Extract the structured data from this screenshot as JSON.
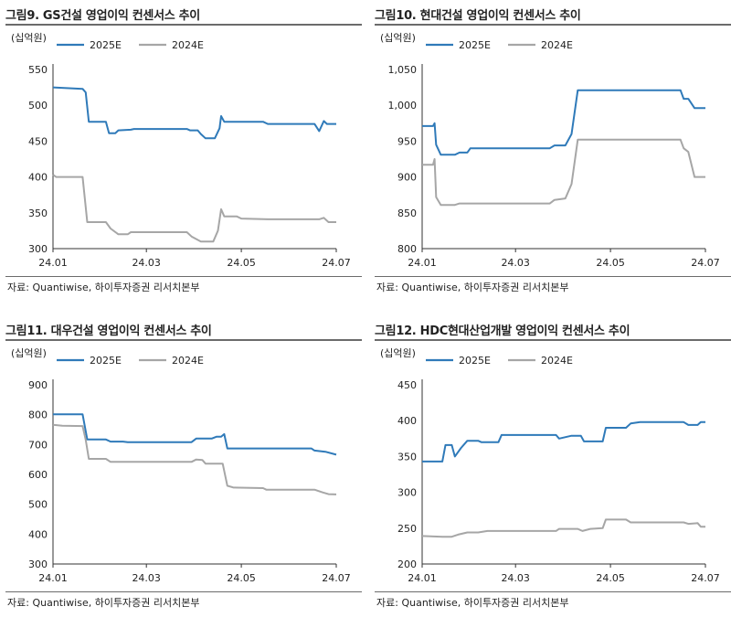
{
  "source": "자료: Quantiwise, 하이투자증권 리서치본부",
  "colors": {
    "series_2025E": "#2f7ab9",
    "series_2024E": "#a6a6a6",
    "rule": "#6b6b6b"
  },
  "chart_data": [
    {
      "type": "line",
      "title": "그림9.  GS건설 영업이익 컨센서스 추이",
      "unit": "(십억원)",
      "ylim": [
        300,
        550
      ],
      "yticks": [
        300,
        350,
        400,
        450,
        500,
        550
      ],
      "xlim": [
        "2024-01-01",
        "2024-07-01"
      ],
      "xticks": [
        "24.01",
        "24.03",
        "24.05",
        "24.07"
      ],
      "legend": "top",
      "series": [
        {
          "name": "2025E",
          "color": "#2f7ab9",
          "points": [
            [
              "2024-01-01",
              525
            ],
            [
              "2024-01-20",
              523
            ],
            [
              "2024-01-22",
              518
            ],
            [
              "2024-01-24",
              477
            ],
            [
              "2024-02-04",
              477
            ],
            [
              "2024-02-06",
              461
            ],
            [
              "2024-02-10",
              461
            ],
            [
              "2024-02-12",
              465
            ],
            [
              "2024-02-20",
              466
            ],
            [
              "2024-02-22",
              467
            ],
            [
              "2024-03-27",
              467
            ],
            [
              "2024-03-29",
              465
            ],
            [
              "2024-04-03",
              465
            ],
            [
              "2024-04-05",
              460
            ],
            [
              "2024-04-08",
              454
            ],
            [
              "2024-04-14",
              454
            ],
            [
              "2024-04-17",
              468
            ],
            [
              "2024-04-18",
              485
            ],
            [
              "2024-04-20",
              477
            ],
            [
              "2024-05-15",
              477
            ],
            [
              "2024-05-18",
              474
            ],
            [
              "2024-06-17",
              474
            ],
            [
              "2024-06-20",
              464
            ],
            [
              "2024-06-23",
              478
            ],
            [
              "2024-06-25",
              474
            ],
            [
              "2024-07-01",
              474
            ]
          ]
        },
        {
          "name": "2024E",
          "color": "#a6a6a6",
          "points": [
            [
              "2024-01-01",
              403
            ],
            [
              "2024-01-03",
              400
            ],
            [
              "2024-01-20",
              400
            ],
            [
              "2024-01-23",
              337
            ],
            [
              "2024-02-04",
              337
            ],
            [
              "2024-02-07",
              328
            ],
            [
              "2024-02-12",
              320
            ],
            [
              "2024-02-18",
              320
            ],
            [
              "2024-02-20",
              323
            ],
            [
              "2024-03-27",
              323
            ],
            [
              "2024-03-30",
              317
            ],
            [
              "2024-04-05",
              310
            ],
            [
              "2024-04-13",
              310
            ],
            [
              "2024-04-16",
              325
            ],
            [
              "2024-04-18",
              355
            ],
            [
              "2024-04-20",
              345
            ],
            [
              "2024-04-28",
              345
            ],
            [
              "2024-05-01",
              342
            ],
            [
              "2024-05-18",
              341
            ],
            [
              "2024-06-20",
              341
            ],
            [
              "2024-06-23",
              343
            ],
            [
              "2024-06-26",
              337
            ],
            [
              "2024-07-01",
              337
            ]
          ]
        }
      ]
    },
    {
      "type": "line",
      "title": "그림10. 현대건설 영업이익 컨센서스 추이",
      "unit": "(십억원)",
      "ylim": [
        800,
        1050
      ],
      "yticks": [
        800,
        850,
        900,
        950,
        1000,
        1050
      ],
      "ytick_labels": [
        "800",
        "850",
        "900",
        "950",
        "1,000",
        "1,050"
      ],
      "xlim": [
        "2024-01-01",
        "2024-07-01"
      ],
      "xticks": [
        "24.01",
        "24.03",
        "24.05",
        "24.07"
      ],
      "legend": "top",
      "series": [
        {
          "name": "2025E",
          "color": "#2f7ab9",
          "points": [
            [
              "2024-01-01",
              971
            ],
            [
              "2024-01-08",
              971
            ],
            [
              "2024-01-09",
              975
            ],
            [
              "2024-01-10",
              945
            ],
            [
              "2024-01-13",
              931
            ],
            [
              "2024-01-22",
              931
            ],
            [
              "2024-01-25",
              934
            ],
            [
              "2024-01-30",
              934
            ],
            [
              "2024-02-01",
              940
            ],
            [
              "2024-03-23",
              940
            ],
            [
              "2024-03-26",
              944
            ],
            [
              "2024-04-02",
              944
            ],
            [
              "2024-04-06",
              960
            ],
            [
              "2024-04-10",
              1021
            ],
            [
              "2024-06-15",
              1021
            ],
            [
              "2024-06-17",
              1009
            ],
            [
              "2024-06-20",
              1009
            ],
            [
              "2024-06-24",
              996
            ],
            [
              "2024-07-01",
              996
            ]
          ]
        },
        {
          "name": "2024E",
          "color": "#a6a6a6",
          "points": [
            [
              "2024-01-01",
              917
            ],
            [
              "2024-01-08",
              917
            ],
            [
              "2024-01-09",
              925
            ],
            [
              "2024-01-10",
              872
            ],
            [
              "2024-01-13",
              861
            ],
            [
              "2024-01-22",
              861
            ],
            [
              "2024-01-25",
              863
            ],
            [
              "2024-03-23",
              863
            ],
            [
              "2024-03-26",
              868
            ],
            [
              "2024-04-02",
              870
            ],
            [
              "2024-04-06",
              890
            ],
            [
              "2024-04-10",
              952
            ],
            [
              "2024-06-15",
              952
            ],
            [
              "2024-06-17",
              940
            ],
            [
              "2024-06-20",
              935
            ],
            [
              "2024-06-24",
              900
            ],
            [
              "2024-07-01",
              900
            ]
          ]
        }
      ]
    },
    {
      "type": "line",
      "title": "그림11. 대우건설 영업이익 컨센서스 추이",
      "unit": "(십억원)",
      "ylim": [
        300,
        900
      ],
      "yticks": [
        300,
        400,
        500,
        600,
        700,
        800,
        900
      ],
      "xlim": [
        "2024-01-01",
        "2024-07-01"
      ],
      "xticks": [
        "24.01",
        "24.03",
        "24.05",
        "24.07"
      ],
      "legend": "top",
      "series": [
        {
          "name": "2025E",
          "color": "#2f7ab9",
          "points": [
            [
              "2024-01-01",
              801
            ],
            [
              "2024-01-20",
              801
            ],
            [
              "2024-01-23",
              717
            ],
            [
              "2024-02-04",
              717
            ],
            [
              "2024-02-07",
              710
            ],
            [
              "2024-02-15",
              710
            ],
            [
              "2024-02-18",
              708
            ],
            [
              "2024-03-30",
              708
            ],
            [
              "2024-04-02",
              720
            ],
            [
              "2024-04-12",
              720
            ],
            [
              "2024-04-15",
              726
            ],
            [
              "2024-04-18",
              726
            ],
            [
              "2024-04-20",
              735
            ],
            [
              "2024-04-22",
              687
            ],
            [
              "2024-06-15",
              687
            ],
            [
              "2024-06-17",
              680
            ],
            [
              "2024-06-24",
              676
            ],
            [
              "2024-07-01",
              666
            ]
          ]
        },
        {
          "name": "2024E",
          "color": "#a6a6a6",
          "points": [
            [
              "2024-01-01",
              766
            ],
            [
              "2024-01-07",
              763
            ],
            [
              "2024-01-20",
              762
            ],
            [
              "2024-01-22",
              716
            ],
            [
              "2024-01-24",
              652
            ],
            [
              "2024-02-04",
              652
            ],
            [
              "2024-02-07",
              642
            ],
            [
              "2024-03-30",
              642
            ],
            [
              "2024-04-02",
              650
            ],
            [
              "2024-04-06",
              648
            ],
            [
              "2024-04-08",
              636
            ],
            [
              "2024-04-19",
              636
            ],
            [
              "2024-04-22",
              562
            ],
            [
              "2024-04-26",
              556
            ],
            [
              "2024-05-15",
              554
            ],
            [
              "2024-05-17",
              549
            ],
            [
              "2024-06-17",
              549
            ],
            [
              "2024-06-22",
              540
            ],
            [
              "2024-06-26",
              534
            ],
            [
              "2024-07-01",
              533
            ]
          ]
        }
      ]
    },
    {
      "type": "line",
      "title": "그림12. HDC현대산업개발 영업이익 컨센서스 추이",
      "unit": "(십억원)",
      "ylim": [
        200,
        450
      ],
      "yticks": [
        200,
        250,
        300,
        350,
        400,
        450
      ],
      "xlim": [
        "2024-01-01",
        "2024-07-01"
      ],
      "xticks": [
        "24.01",
        "24.03",
        "24.05",
        "24.07"
      ],
      "legend": "top",
      "series": [
        {
          "name": "2025E",
          "color": "#2f7ab9",
          "points": [
            [
              "2024-01-01",
              343
            ],
            [
              "2024-01-14",
              343
            ],
            [
              "2024-01-16",
              366
            ],
            [
              "2024-01-20",
              366
            ],
            [
              "2024-01-22",
              350
            ],
            [
              "2024-01-26",
              362
            ],
            [
              "2024-01-30",
              372
            ],
            [
              "2024-02-06",
              372
            ],
            [
              "2024-02-08",
              370
            ],
            [
              "2024-02-19",
              370
            ],
            [
              "2024-02-21",
              380
            ],
            [
              "2024-03-27",
              380
            ],
            [
              "2024-03-29",
              375
            ],
            [
              "2024-04-06",
              379
            ],
            [
              "2024-04-12",
              379
            ],
            [
              "2024-04-14",
              371
            ],
            [
              "2024-04-26",
              371
            ],
            [
              "2024-04-28",
              390
            ],
            [
              "2024-05-11",
              390
            ],
            [
              "2024-05-14",
              396
            ],
            [
              "2024-05-20",
              398
            ],
            [
              "2024-06-17",
              398
            ],
            [
              "2024-06-20",
              394
            ],
            [
              "2024-06-26",
              394
            ],
            [
              "2024-06-28",
              398
            ],
            [
              "2024-07-01",
              398
            ]
          ]
        },
        {
          "name": "2024E",
          "color": "#a6a6a6",
          "points": [
            [
              "2024-01-01",
              239
            ],
            [
              "2024-01-14",
              238
            ],
            [
              "2024-01-20",
              238
            ],
            [
              "2024-01-24",
              241
            ],
            [
              "2024-01-30",
              244
            ],
            [
              "2024-02-06",
              244
            ],
            [
              "2024-02-12",
              246
            ],
            [
              "2024-03-27",
              246
            ],
            [
              "2024-03-29",
              249
            ],
            [
              "2024-04-10",
              249
            ],
            [
              "2024-04-13",
              246
            ],
            [
              "2024-04-18",
              249
            ],
            [
              "2024-04-26",
              250
            ],
            [
              "2024-04-28",
              262
            ],
            [
              "2024-05-11",
              262
            ],
            [
              "2024-05-14",
              258
            ],
            [
              "2024-06-17",
              258
            ],
            [
              "2024-06-20",
              256
            ],
            [
              "2024-06-26",
              257
            ],
            [
              "2024-06-28",
              252
            ],
            [
              "2024-07-01",
              252
            ]
          ]
        }
      ]
    }
  ]
}
